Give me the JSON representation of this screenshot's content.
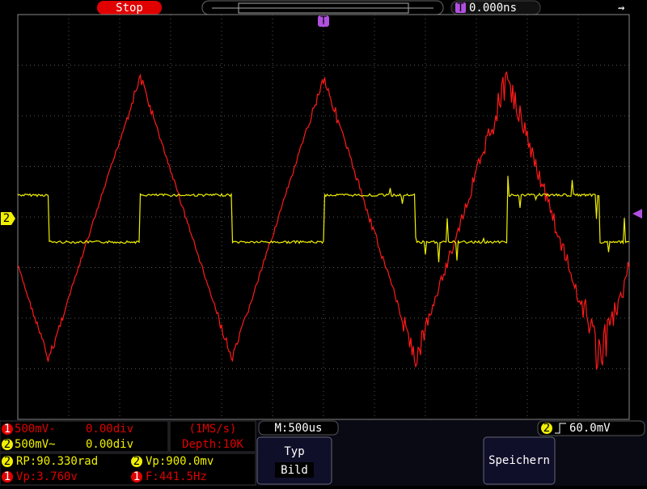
{
  "header": {
    "status": "Stop",
    "time_offset": "0.000ns",
    "trigger_marker": "T"
  },
  "screen": {
    "channel_marker": "2"
  },
  "bottom": {
    "channels": [
      {
        "badge": "1",
        "scale": "500mV-",
        "offset": "0.00div"
      },
      {
        "badge": "2",
        "scale": "500mV~",
        "offset": "0.00div"
      }
    ],
    "sample_rate": "(1MS/s)",
    "depth": "Depth:10K",
    "timebase": "M:500us",
    "trigger": {
      "badge": "2",
      "level": "60.0mV"
    },
    "buttons": [
      {
        "label": "Typ",
        "value": "Bild"
      },
      {
        "label": "Speichern"
      }
    ],
    "measurements": [
      {
        "badge": "2",
        "text": "RP:90.330rad"
      },
      {
        "badge": "2",
        "text": "Vp:900.0mv"
      },
      {
        "badge": "1",
        "text": "Vp:3.760v"
      },
      {
        "badge": "1",
        "text": "F:441.5Hz"
      }
    ]
  }
}
